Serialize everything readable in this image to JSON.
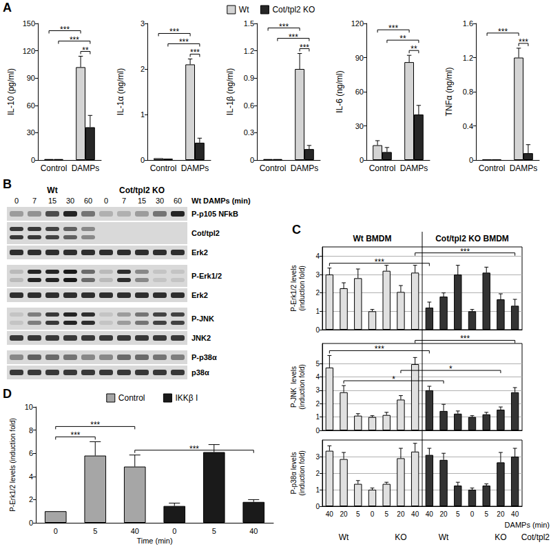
{
  "chart_data": [
    {
      "type": "bar",
      "y_label": "IL-10 (pg/ml)",
      "categories": [
        "Control",
        "DAMPs"
      ],
      "series": [
        {
          "name": "Wt",
          "color": "#d4d4d4",
          "values": [
            1,
            102
          ],
          "errors": [
            null,
            12
          ]
        },
        {
          "name": "Cot/tpl2 KO",
          "color": "#262626",
          "values": [
            1,
            36
          ],
          "errors": [
            null,
            13
          ]
        }
      ],
      "ylim": [
        0,
        150
      ],
      "yticks": [
        0,
        30,
        60,
        90,
        120,
        150
      ],
      "grid": false,
      "legend": "top",
      "annotations": [
        {
          "text": "**",
          "from": [
            1,
            0
          ],
          "to": [
            1,
            1
          ]
        },
        {
          "text": "***",
          "from": [
            0,
            1
          ],
          "to": [
            1,
            1
          ]
        },
        {
          "text": "***",
          "from": [
            0,
            0
          ],
          "to": [
            1,
            0
          ]
        }
      ]
    },
    {
      "type": "bar",
      "y_label": "IL-1α (ng/ml)",
      "categories": [
        "Control",
        "DAMPs"
      ],
      "series": [
        {
          "name": "Wt",
          "color": "#d4d4d4",
          "values": [
            0.04,
            2.1
          ],
          "errors": [
            null,
            0.12
          ]
        },
        {
          "name": "Cot/tpl2 KO",
          "color": "#262626",
          "values": [
            0.03,
            0.38
          ],
          "errors": [
            null,
            0.1
          ]
        }
      ],
      "ylim": [
        0,
        3
      ],
      "yticks": [
        0,
        1,
        2,
        3
      ],
      "grid": false,
      "annotations": [
        {
          "text": "***",
          "from": [
            1,
            0
          ],
          "to": [
            1,
            1
          ]
        },
        {
          "text": "***",
          "from": [
            0,
            1
          ],
          "to": [
            1,
            1
          ]
        },
        {
          "text": "***",
          "from": [
            0,
            0
          ],
          "to": [
            1,
            0
          ]
        }
      ]
    },
    {
      "type": "bar",
      "y_label": "IL-1β (ng/ml)",
      "categories": [
        "Control",
        "DAMPs"
      ],
      "series": [
        {
          "name": "Wt",
          "color": "#d4d4d4",
          "values": [
            0.01,
            1.0
          ],
          "errors": [
            null,
            0.17
          ]
        },
        {
          "name": "Cot/tpl2 KO",
          "color": "#262626",
          "values": [
            0.01,
            0.12
          ],
          "errors": [
            null,
            0.04
          ]
        }
      ],
      "ylim": [
        0,
        1.5
      ],
      "yticks": [
        0,
        0.3,
        0.6,
        0.9,
        1.2,
        1.5
      ],
      "grid": false,
      "annotations": [
        {
          "text": "***",
          "from": [
            1,
            0
          ],
          "to": [
            1,
            1
          ]
        },
        {
          "text": "***",
          "from": [
            0,
            1
          ],
          "to": [
            1,
            1
          ]
        },
        {
          "text": "***",
          "from": [
            0,
            0
          ],
          "to": [
            1,
            0
          ]
        }
      ]
    },
    {
      "type": "bar",
      "y_label": "IL-6 (ng/ml)",
      "categories": [
        "Control",
        "DAMPs"
      ],
      "series": [
        {
          "name": "Wt",
          "color": "#d4d4d4",
          "values": [
            13,
            86
          ],
          "errors": [
            4,
            6
          ]
        },
        {
          "name": "Cot/tpl2 KO",
          "color": "#262626",
          "values": [
            7,
            40
          ],
          "errors": [
            4,
            8
          ]
        }
      ],
      "ylim": [
        0,
        120
      ],
      "yticks": [
        0,
        30,
        60,
        90,
        120
      ],
      "grid": false,
      "annotations": [
        {
          "text": "**",
          "from": [
            1,
            0
          ],
          "to": [
            1,
            1
          ]
        },
        {
          "text": "**",
          "from": [
            0,
            1
          ],
          "to": [
            1,
            1
          ]
        },
        {
          "text": "***",
          "from": [
            0,
            0
          ],
          "to": [
            1,
            0
          ]
        }
      ]
    },
    {
      "type": "bar",
      "y_label": "TNFα (ng/ml)",
      "categories": [
        "Control",
        "DAMPs"
      ],
      "series": [
        {
          "name": "Wt",
          "color": "#d4d4d4",
          "values": [
            0.005,
            1.2
          ],
          "errors": [
            null,
            0.11
          ]
        },
        {
          "name": "Cot/tpl2 KO",
          "color": "#262626",
          "values": [
            0.005,
            0.08
          ],
          "errors": [
            null,
            0.1
          ]
        }
      ],
      "ylim": [
        0,
        1.6
      ],
      "yticks": [
        0,
        0.4,
        0.8,
        1.2,
        1.6
      ],
      "grid": false,
      "annotations": [
        {
          "text": "***",
          "from": [
            1,
            0
          ],
          "to": [
            1,
            1
          ]
        },
        {
          "text": "***",
          "from": [
            0,
            0
          ],
          "to": [
            1,
            0
          ]
        }
      ]
    },
    {
      "type": "bar",
      "y_label": "P-Erk1/2 levels\n(induction fold)",
      "categories": [
        "40",
        "20",
        "5",
        "0",
        "5",
        "20",
        "40",
        "40",
        "20",
        "5",
        "0",
        "5",
        "20",
        "40"
      ],
      "series": [
        {
          "name": "Wt BMDM",
          "color": "#e0e0e0",
          "values": [
            3.0,
            2.25,
            2.8,
            1.0,
            3.2,
            2.05,
            3.1,
            null,
            null,
            null,
            null,
            null,
            null,
            null
          ],
          "errors": [
            0.35,
            0.3,
            0.5,
            0.1,
            0.3,
            0.35,
            0.4,
            null,
            null,
            null,
            null,
            null,
            null,
            null
          ]
        },
        {
          "name": "Cot/tpl2 KO BMDM",
          "color": "#333333",
          "values": [
            null,
            null,
            null,
            null,
            null,
            null,
            null,
            1.2,
            1.8,
            3.0,
            1.0,
            3.1,
            1.65,
            1.3
          ],
          "errors": [
            null,
            null,
            null,
            null,
            null,
            null,
            null,
            0.3,
            0.2,
            0.5,
            0.1,
            0.3,
            0.3,
            0.35
          ]
        }
      ],
      "ylim": [
        0,
        4.5
      ],
      "yticks": [
        0,
        1,
        2,
        3,
        4
      ],
      "grid": true,
      "tick_labels": "y",
      "annotations": [
        {
          "text": "***",
          "from": [
            0,
            0
          ],
          "to": [
            7,
            1
          ]
        },
        {
          "text": "***",
          "from": [
            6,
            0
          ],
          "to": [
            13,
            1
          ]
        }
      ]
    },
    {
      "type": "bar",
      "y_label": "P-JNK  levels\n(induction fold)",
      "categories": [
        "40",
        "20",
        "5",
        "0",
        "5",
        "20",
        "40",
        "40",
        "20",
        "5",
        "0",
        "5",
        "20",
        "40"
      ],
      "series": [
        {
          "name": "Wt BMDM",
          "color": "#e0e0e0",
          "values": [
            4.7,
            2.85,
            1.1,
            1.0,
            1.15,
            2.3,
            4.95,
            null,
            null,
            null,
            null,
            null,
            null,
            null
          ],
          "errors": [
            0.9,
            0.5,
            0.15,
            0.1,
            0.2,
            0.3,
            0.5,
            null,
            null,
            null,
            null,
            null,
            null,
            null
          ]
        },
        {
          "name": "Cot/tpl2 KO BMDM",
          "color": "#333333",
          "values": [
            null,
            null,
            null,
            null,
            null,
            null,
            null,
            3.0,
            1.45,
            1.25,
            1.0,
            1.2,
            1.55,
            2.85
          ],
          "errors": [
            null,
            null,
            null,
            null,
            null,
            null,
            null,
            0.3,
            0.5,
            0.2,
            0.1,
            0.15,
            0.2,
            0.35
          ]
        }
      ],
      "ylim": [
        0,
        6.5
      ],
      "yticks": [
        0,
        1,
        2,
        3,
        4,
        5
      ],
      "grid": true,
      "tick_labels": "y",
      "annotations": [
        {
          "text": "*",
          "from": [
            1,
            0
          ],
          "to": [
            8,
            1
          ]
        },
        {
          "text": "*",
          "from": [
            5,
            0
          ],
          "to": [
            12,
            1
          ]
        },
        {
          "text": "***",
          "from": [
            0,
            0
          ],
          "to": [
            7,
            1
          ]
        },
        {
          "text": "***",
          "from": [
            6,
            0
          ],
          "to": [
            13,
            1
          ]
        }
      ]
    },
    {
      "type": "bar",
      "y_label": "P-p38α levels\n(induction fold)",
      "x_label": "DAMPs (min)",
      "categories": [
        "40",
        "20",
        "5",
        "0",
        "5",
        "20",
        "40",
        "40",
        "20",
        "5",
        "0",
        "5",
        "20",
        "40"
      ],
      "series": [
        {
          "name": "Wt BMDM",
          "color": "#e0e0e0",
          "values": [
            3.35,
            2.85,
            1.35,
            1.0,
            1.35,
            2.9,
            3.3,
            null,
            null,
            null,
            null,
            null,
            null,
            null
          ],
          "errors": [
            0.3,
            0.4,
            0.2,
            0.1,
            0.1,
            0.6,
            0.5,
            null,
            null,
            null,
            null,
            null,
            null,
            null
          ]
        },
        {
          "name": "Cot/tpl2 KO BMDM",
          "color": "#333333",
          "values": [
            null,
            null,
            null,
            null,
            null,
            null,
            null,
            3.1,
            2.8,
            1.25,
            1.0,
            1.25,
            2.65,
            3.0
          ],
          "errors": [
            null,
            null,
            null,
            null,
            null,
            null,
            null,
            0.4,
            0.4,
            0.2,
            0.1,
            0.1,
            0.6,
            0.5
          ]
        }
      ],
      "ylim": [
        0,
        4
      ],
      "yticks": [
        0,
        1,
        2,
        3
      ],
      "grid": true
    },
    {
      "type": "bar",
      "y_label": "P-Erk1/2 levels (induction fold)",
      "x_label": "Time (min)",
      "categories": [
        "0",
        "5",
        "40",
        "0",
        "5",
        "40"
      ],
      "series": [
        {
          "name": "Control",
          "color": "#a6a6a6",
          "values": [
            1.0,
            5.8,
            4.85,
            null,
            null,
            null
          ],
          "errors": [
            null,
            1.2,
            1.0,
            null,
            null,
            null
          ]
        },
        {
          "name": "IKKβ I",
          "color": "#1a1a1a",
          "values": [
            null,
            null,
            null,
            1.45,
            6.1,
            1.8
          ],
          "errors": [
            null,
            null,
            null,
            0.25,
            0.65,
            0.2
          ]
        }
      ],
      "ylim": [
        0,
        10
      ],
      "yticks": [
        0,
        2,
        4,
        6,
        8,
        10
      ],
      "grid": false,
      "legend": "top",
      "annotations": [
        {
          "text": "***",
          "from": [
            0,
            0
          ],
          "to": [
            1,
            0
          ]
        },
        {
          "text": "***",
          "from": [
            2,
            0
          ],
          "to": [
            5,
            1
          ]
        },
        {
          "text": "***",
          "from": [
            0,
            0
          ],
          "to": [
            2,
            0
          ]
        }
      ]
    }
  ],
  "figure": {
    "panel_labels": [
      "A",
      "B",
      "C",
      "D"
    ],
    "panel_c": {
      "groups": [
        {
          "label": "Wt",
          "span": [
            0,
            2
          ]
        },
        {
          "label": "KO",
          "span": [
            4,
            6
          ]
        },
        {
          "label": "Wt",
          "span": [
            7,
            9
          ]
        },
        {
          "label": "KO",
          "span": [
            11,
            13
          ]
        }
      ],
      "factor": "Cot/tpl2"
    },
    "blot": {
      "groups": [
        {
          "label": "Wt",
          "lanes": [
            0,
            4
          ]
        },
        {
          "label": "Cot/tpl2 KO",
          "lanes": [
            5,
            9
          ]
        }
      ],
      "lanes": [
        0,
        7,
        15,
        30,
        60,
        0,
        7,
        15,
        30,
        60
      ],
      "lane_title": "Wt DAMPs (min)",
      "rows": [
        {
          "label": "P-p105 NFkB",
          "doublet": false,
          "intensity": [
            0.3,
            0.35,
            0.7,
            0.9,
            0.5,
            0.2,
            0.2,
            0.3,
            0.5,
            0.9
          ]
        },
        {
          "label": "Cot/tpl2",
          "doublet": true,
          "intensity": [
            0.8,
            0.8,
            0.75,
            0.6,
            0.4,
            0,
            0,
            0,
            0,
            0
          ]
        },
        {
          "label": "Erk2",
          "doublet": false,
          "intensity": [
            0.85,
            0.85,
            0.85,
            0.85,
            0.85,
            0.85,
            0.85,
            0.85,
            0.85,
            0.85
          ]
        },
        {
          "label": "P-Erk1/2",
          "doublet": true,
          "intensity": [
            0.15,
            0.9,
            0.9,
            0.95,
            0.55,
            0.15,
            0.85,
            0.4,
            0.1,
            0.1
          ]
        },
        {
          "label": "Erk2",
          "doublet": false,
          "intensity": [
            0.85,
            0.85,
            0.85,
            0.85,
            0.85,
            0.85,
            0.85,
            0.85,
            0.85,
            0.85
          ]
        },
        {
          "label": "P-JNK",
          "doublet": true,
          "intensity": [
            0.1,
            0.45,
            0.8,
            0.9,
            0.85,
            0.1,
            0.3,
            0.5,
            0.75,
            0.75
          ]
        },
        {
          "label": "JNK2",
          "doublet": false,
          "intensity": [
            0.8,
            0.8,
            0.8,
            0.8,
            0.8,
            0.8,
            0.8,
            0.8,
            0.8,
            0.8
          ]
        },
        {
          "label": "P-p38α",
          "doublet": false,
          "intensity": [
            0.4,
            0.6,
            0.55,
            0.5,
            0.4,
            0.4,
            0.55,
            0.55,
            0.5,
            0.45
          ]
        },
        {
          "label": "p38α",
          "doublet": false,
          "intensity": [
            0.8,
            0.8,
            0.8,
            0.8,
            0.8,
            0.8,
            0.8,
            0.8,
            0.8,
            0.8
          ]
        }
      ]
    }
  }
}
